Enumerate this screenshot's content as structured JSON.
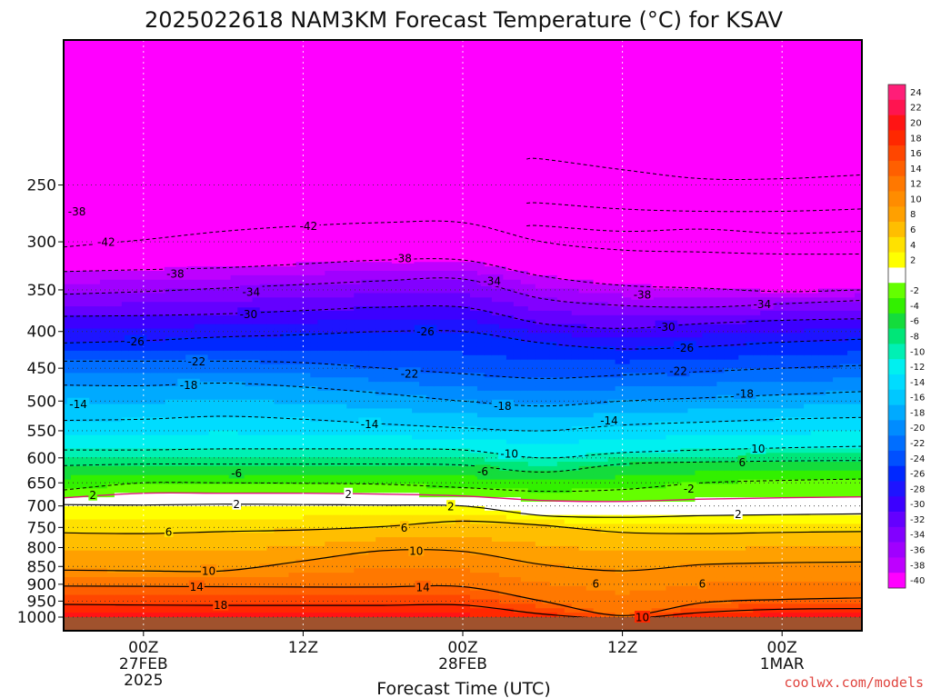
{
  "chart_data": {
    "type": "heatmap",
    "title": "2025022618 NAM3KM Forecast Temperature (°C) for KSAV",
    "xlabel": "Forecast Time (UTC)",
    "y_axis": {
      "reversed": true,
      "ticks": [
        250,
        300,
        350,
        400,
        450,
        500,
        550,
        600,
        650,
        700,
        750,
        800,
        850,
        900,
        950,
        1000
      ]
    },
    "x_axis": {
      "range_hours": [
        0,
        60
      ],
      "ticks": [
        {
          "hour": 6,
          "lines": [
            "00Z",
            "27FEB",
            "2025"
          ]
        },
        {
          "hour": 18,
          "lines": [
            "12Z"
          ]
        },
        {
          "hour": 30,
          "lines": [
            "00Z",
            "28FEB"
          ]
        },
        {
          "hour": 42,
          "lines": [
            "12Z"
          ]
        },
        {
          "hour": 54,
          "lines": [
            "00Z",
            "1MAR"
          ]
        }
      ]
    },
    "grid": true,
    "colorbar": {
      "placement": "right",
      "levels": [
        {
          "label": "24",
          "color": "#ff1e78"
        },
        {
          "label": "22",
          "color": "#ff1450"
        },
        {
          "label": "20",
          "color": "#ff1414"
        },
        {
          "label": "18",
          "color": "#ff2800"
        },
        {
          "label": "16",
          "color": "#ff4600"
        },
        {
          "label": "14",
          "color": "#ff5f00"
        },
        {
          "label": "12",
          "color": "#ff7800"
        },
        {
          "label": "10",
          "color": "#ff8c00"
        },
        {
          "label": "8",
          "color": "#ffa000"
        },
        {
          "label": "6",
          "color": "#ffbe00"
        },
        {
          "label": "4",
          "color": "#ffe100"
        },
        {
          "label": "2",
          "color": "#ffff00"
        },
        {
          "label": "",
          "color": "#ffffff"
        },
        {
          "label": "-2",
          "color": "#64ff00"
        },
        {
          "label": "-4",
          "color": "#32f000"
        },
        {
          "label": "-6",
          "color": "#14dc3c"
        },
        {
          "label": "-8",
          "color": "#00e678"
        },
        {
          "label": "-10",
          "color": "#00f0b4"
        },
        {
          "label": "-12",
          "color": "#00f0f0"
        },
        {
          "label": "-14",
          "color": "#00dcff"
        },
        {
          "label": "-16",
          "color": "#00c8ff"
        },
        {
          "label": "-18",
          "color": "#00aaff"
        },
        {
          "label": "-20",
          "color": "#008cff"
        },
        {
          "label": "-22",
          "color": "#006eff"
        },
        {
          "label": "-24",
          "color": "#0050ff"
        },
        {
          "label": "-26",
          "color": "#0028ff"
        },
        {
          "label": "-28",
          "color": "#1e14ff"
        },
        {
          "label": "-30",
          "color": "#3c00ff"
        },
        {
          "label": "-32",
          "color": "#6400ff"
        },
        {
          "label": "-34",
          "color": "#8200ff"
        },
        {
          "label": "-36",
          "color": "#a000ff"
        },
        {
          "label": "-38",
          "color": "#be00ff"
        },
        {
          "label": "-40",
          "color": "#ff00ff"
        }
      ]
    },
    "isotherms_pressure_hpa_by_time": {
      "times_h": [
        0,
        6,
        12,
        18,
        24,
        30,
        36,
        42,
        48,
        54,
        60
      ],
      "contours": [
        {
          "temp": 18,
          "p": [
            960,
            962,
            963,
            963,
            963,
            962,
            990,
            1005,
            985,
            975,
            973
          ]
        },
        {
          "temp": 14,
          "p": [
            905,
            906,
            907,
            908,
            908,
            907,
            950,
            995,
            955,
            945,
            940
          ]
        },
        {
          "temp": 10,
          "p": [
            860,
            862,
            862,
            835,
            808,
            810,
            845,
            862,
            845,
            840,
            838
          ]
        },
        {
          "temp": 6,
          "p": [
            763,
            765,
            760,
            756,
            748,
            735,
            745,
            762,
            765,
            762,
            760
          ]
        },
        {
          "temp": 2,
          "p": [
            697,
            698,
            696,
            697,
            698,
            700,
            722,
            726,
            722,
            720,
            718
          ]
        },
        {
          "temp": 0,
          "p": [
            682,
            672,
            672,
            672,
            674,
            678,
            688,
            690,
            685,
            682,
            680
          ]
        },
        {
          "temp": -2,
          "p": [
            665,
            650,
            650,
            651,
            653,
            660,
            668,
            664,
            650,
            645,
            642
          ]
        },
        {
          "temp": -6,
          "p": [
            615,
            612,
            612,
            612,
            612,
            614,
            628,
            612,
            608,
            606,
            605
          ]
        },
        {
          "temp": -10,
          "p": [
            585,
            585,
            583,
            583,
            583,
            585,
            600,
            590,
            585,
            581,
            578
          ]
        },
        {
          "temp": -14,
          "p": [
            532,
            530,
            525,
            530,
            538,
            545,
            550,
            540,
            535,
            530,
            527
          ]
        },
        {
          "temp": -18,
          "p": [
            475,
            476,
            472,
            478,
            488,
            500,
            508,
            500,
            495,
            490,
            485
          ]
        },
        {
          "temp": -22,
          "p": [
            440,
            440,
            440,
            442,
            450,
            458,
            465,
            460,
            455,
            450,
            446
          ]
        },
        {
          "temp": -26,
          "p": [
            415,
            412,
            407,
            404,
            400,
            400,
            415,
            423,
            420,
            414,
            410
          ]
        },
        {
          "temp": -30,
          "p": [
            381,
            380,
            378,
            374,
            370,
            370,
            390,
            396,
            390,
            386,
            384
          ]
        },
        {
          "temp": -34,
          "p": [
            355,
            352,
            348,
            344,
            340,
            338,
            360,
            368,
            370,
            366,
            362
          ]
        },
        {
          "temp": -38,
          "p": [
            330,
            328,
            326,
            322,
            318,
            318,
            335,
            345,
            348,
            352,
            350
          ]
        },
        {
          "temp": -42,
          "p": [
            305,
            298,
            290,
            285,
            282,
            282,
            300,
            308,
            310,
            312,
            312
          ]
        },
        {
          "temp": -46,
          "p": [
            null,
            null,
            null,
            null,
            null,
            null,
            285,
            290,
            288,
            292,
            290
          ]
        },
        {
          "temp": -50,
          "p": [
            null,
            null,
            null,
            null,
            null,
            null,
            265,
            270,
            272,
            272,
            270
          ]
        },
        {
          "temp": -54,
          "p": [
            null,
            null,
            null,
            null,
            null,
            null,
            230,
            238,
            245,
            245,
            242
          ]
        }
      ]
    },
    "contour_labels": [
      {
        "text": "-38",
        "h": 1.0,
        "p": 272
      },
      {
        "text": "-42",
        "h": 3.2,
        "p": 300
      },
      {
        "text": "-42",
        "h": 18.4,
        "p": 285
      },
      {
        "text": "-38",
        "h": 8.4,
        "p": 332
      },
      {
        "text": "-38",
        "h": 25.5,
        "p": 316
      },
      {
        "text": "-38",
        "h": 43.5,
        "p": 355
      },
      {
        "text": "-34",
        "h": 14.1,
        "p": 352
      },
      {
        "text": "-34",
        "h": 32.2,
        "p": 340
      },
      {
        "text": "-34",
        "h": 52.5,
        "p": 366
      },
      {
        "text": "-30",
        "h": 13.9,
        "p": 378
      },
      {
        "text": "-30",
        "h": 45.3,
        "p": 394
      },
      {
        "text": "-26",
        "h": 5.4,
        "p": 413
      },
      {
        "text": "-26",
        "h": 27.2,
        "p": 400
      },
      {
        "text": "-26",
        "h": 46.7,
        "p": 421
      },
      {
        "text": "-22",
        "h": 10.0,
        "p": 440
      },
      {
        "text": "-22",
        "h": 26.0,
        "p": 458
      },
      {
        "text": "-22",
        "h": 46.2,
        "p": 454
      },
      {
        "text": "-18",
        "h": 9.4,
        "p": 475
      },
      {
        "text": "-18",
        "h": 33.0,
        "p": 508
      },
      {
        "text": "-18",
        "h": 51.2,
        "p": 488
      },
      {
        "text": "-14",
        "h": 1.1,
        "p": 505
      },
      {
        "text": "-14",
        "h": 23.0,
        "p": 538
      },
      {
        "text": "-14",
        "h": 41.0,
        "p": 532
      },
      {
        "text": "-10",
        "h": 33.5,
        "p": 592
      },
      {
        "text": "10",
        "h": 52.2,
        "p": 582
      },
      {
        "text": "-6",
        "h": 13.0,
        "p": 630
      },
      {
        "text": "-6",
        "h": 31.5,
        "p": 626
      },
      {
        "text": "6",
        "h": 51.0,
        "p": 608
      },
      {
        "text": "-2",
        "h": 47.0,
        "p": 662
      },
      {
        "text": "2",
        "h": 2.2,
        "p": 676
      },
      {
        "text": "2",
        "h": 21.4,
        "p": 674
      },
      {
        "text": "2",
        "h": 13.0,
        "p": 696
      },
      {
        "text": "2",
        "h": 29.1,
        "p": 701
      },
      {
        "text": "2",
        "h": 50.7,
        "p": 718
      },
      {
        "text": "6",
        "h": 7.9,
        "p": 760
      },
      {
        "text": "6",
        "h": 25.6,
        "p": 750
      },
      {
        "text": "10",
        "h": 26.5,
        "p": 808
      },
      {
        "text": "10",
        "h": 10.9,
        "p": 862
      },
      {
        "text": "10",
        "h": 43.5,
        "p": 1000
      },
      {
        "text": "6",
        "h": 40.0,
        "p": 898
      },
      {
        "text": "6",
        "h": 48.0,
        "p": 898
      },
      {
        "text": "14",
        "h": 10.0,
        "p": 907
      },
      {
        "text": "14",
        "h": 27.0,
        "p": 908
      },
      {
        "text": "18",
        "h": 11.8,
        "p": 962
      }
    ]
  },
  "credit": "coolwx.com/models"
}
